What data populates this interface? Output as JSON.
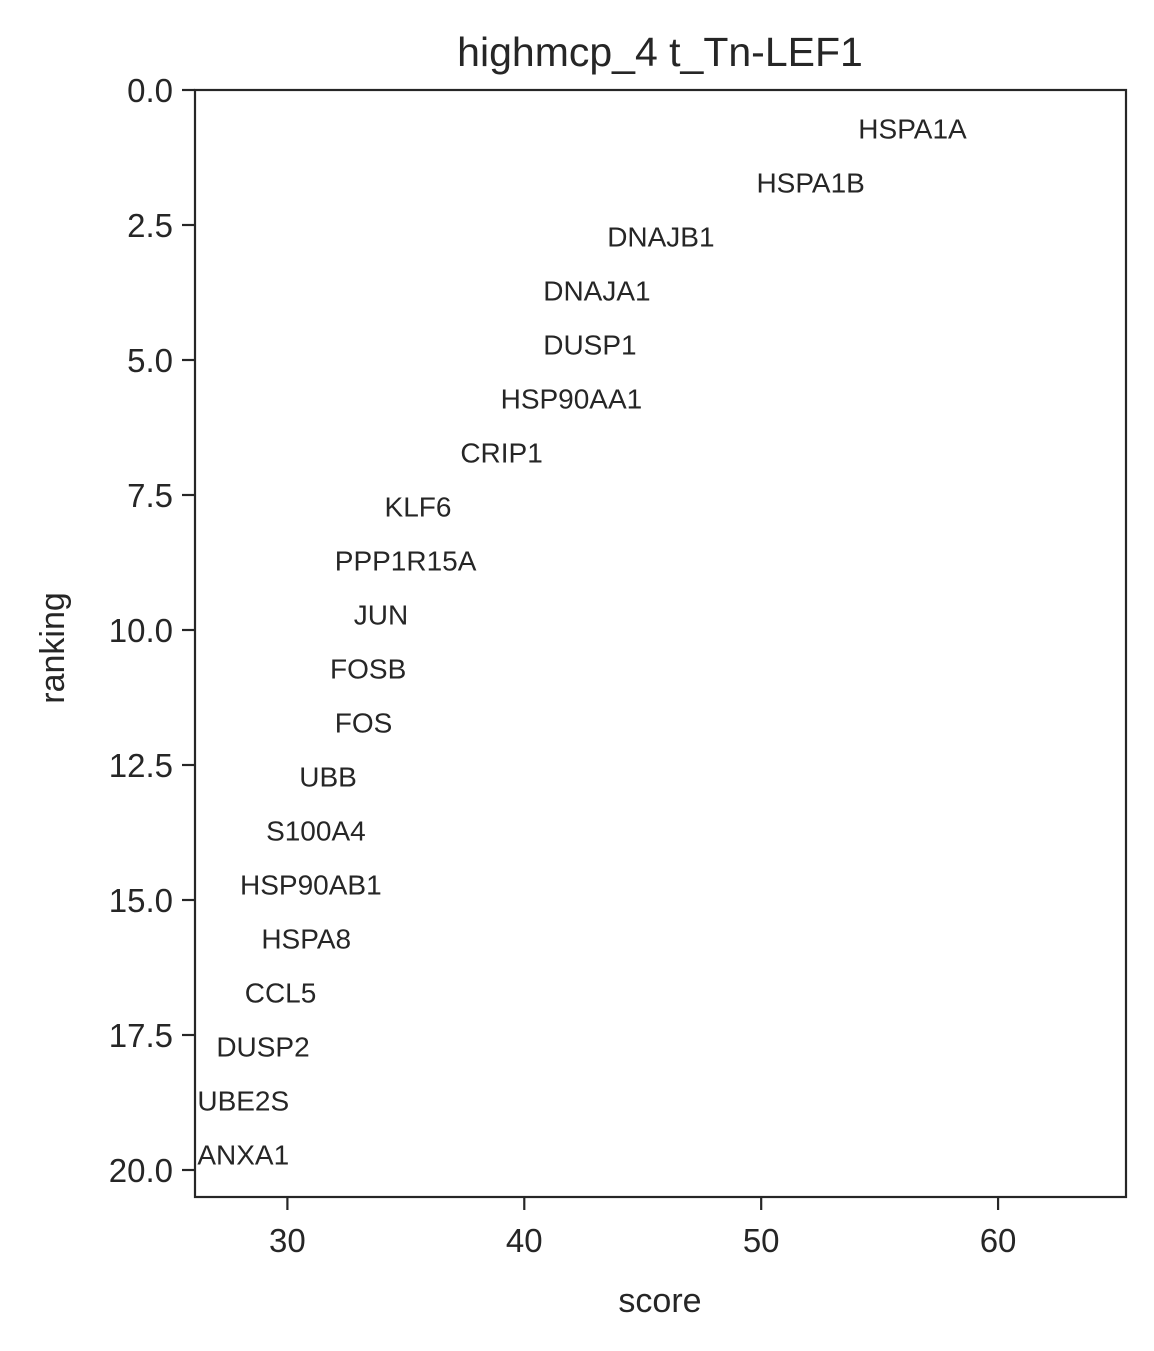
{
  "chart_data": {
    "type": "scatter",
    "title": "highmcp_4 t_Tn-LEF1",
    "xlabel": "score",
    "ylabel": "ranking",
    "xlim": [
      26.1,
      65.4
    ],
    "ylim": [
      20.5,
      0.0
    ],
    "y_inverted": true,
    "grid": false,
    "xticks": [
      30,
      40,
      50,
      60
    ],
    "yticks": [
      0.0,
      2.5,
      5.0,
      7.5,
      10.0,
      12.5,
      15.0,
      17.5,
      20.0
    ],
    "xtick_labels": [
      "30",
      "40",
      "50",
      "60"
    ],
    "ytick_labels": [
      "0.0",
      "2.5",
      "5.0",
      "7.5",
      "10.0",
      "12.5",
      "15.0",
      "17.5",
      "20.0"
    ],
    "points": [
      {
        "gene": "HSPA1A",
        "rank": 0,
        "score": 54.1
      },
      {
        "gene": "HSPA1B",
        "rank": 1,
        "score": 49.8
      },
      {
        "gene": "DNAJB1",
        "rank": 2,
        "score": 43.5
      },
      {
        "gene": "DNAJA1",
        "rank": 3,
        "score": 40.8
      },
      {
        "gene": "DUSP1",
        "rank": 4,
        "score": 40.8
      },
      {
        "gene": "HSP90AA1",
        "rank": 5,
        "score": 39.0
      },
      {
        "gene": "CRIP1",
        "rank": 6,
        "score": 37.3
      },
      {
        "gene": "KLF6",
        "rank": 7,
        "score": 34.1
      },
      {
        "gene": "PPP1R15A",
        "rank": 8,
        "score": 32.0
      },
      {
        "gene": "JUN",
        "rank": 9,
        "score": 32.8
      },
      {
        "gene": "FOSB",
        "rank": 10,
        "score": 31.8
      },
      {
        "gene": "FOS",
        "rank": 11,
        "score": 32.0
      },
      {
        "gene": "UBB",
        "rank": 12,
        "score": 30.5
      },
      {
        "gene": "S100A4",
        "rank": 13,
        "score": 29.1
      },
      {
        "gene": "HSP90AB1",
        "rank": 14,
        "score": 28.0
      },
      {
        "gene": "HSPA8",
        "rank": 15,
        "score": 28.9
      },
      {
        "gene": "CCL5",
        "rank": 16,
        "score": 28.2
      },
      {
        "gene": "DUSP2",
        "rank": 17,
        "score": 27.0
      },
      {
        "gene": "UBE2S",
        "rank": 18,
        "score": 26.2
      },
      {
        "gene": "ANXA1",
        "rank": 19,
        "score": 26.2
      }
    ]
  }
}
